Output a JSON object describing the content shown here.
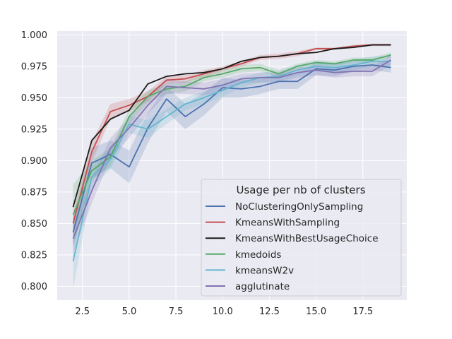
{
  "chart_data": {
    "type": "line",
    "title": "",
    "xlabel": "",
    "ylabel": "",
    "xlim": [
      1.15,
      19.85
    ],
    "ylim": [
      0.789,
      1.003
    ],
    "x_ticks": [
      2.5,
      5.0,
      7.5,
      10.0,
      12.5,
      15.0,
      17.5
    ],
    "x_tick_labels": [
      "2.5",
      "5.0",
      "7.5",
      "10.0",
      "12.5",
      "15.0",
      "17.5"
    ],
    "y_ticks": [
      0.8,
      0.825,
      0.85,
      0.875,
      0.9,
      0.925,
      0.95,
      0.975,
      1.0
    ],
    "y_tick_labels": [
      "0.800",
      "0.825",
      "0.850",
      "0.875",
      "0.900",
      "0.925",
      "0.950",
      "0.975",
      "1.000"
    ],
    "grid": true,
    "legend": {
      "title": "Usage per nb of clusters",
      "placement": "lower-right"
    },
    "x": [
      2,
      3,
      4,
      5,
      6,
      7,
      8,
      9,
      10,
      11,
      12,
      13,
      14,
      15,
      16,
      17,
      18,
      19
    ],
    "series": [
      {
        "name": "NoClusteringOnlySampling",
        "color": "#4c72b0",
        "values": [
          0.843,
          0.898,
          0.905,
          0.895,
          0.926,
          0.949,
          0.935,
          0.945,
          0.958,
          0.957,
          0.959,
          0.963,
          0.963,
          0.973,
          0.972,
          0.975,
          0.976,
          0.974
        ],
        "band": [
          0.012,
          0.012,
          0.011,
          0.013,
          0.012,
          0.01,
          0.01,
          0.009,
          0.008,
          0.007,
          0.006,
          0.006,
          0.006,
          0.005,
          0.005,
          0.004,
          0.004,
          0.004
        ]
      },
      {
        "name": "KmeansWithSampling",
        "color": "#c44e52",
        "values": [
          0.85,
          0.907,
          0.939,
          0.944,
          0.951,
          0.964,
          0.965,
          0.969,
          0.973,
          0.977,
          0.982,
          0.983,
          0.985,
          0.989,
          0.989,
          0.991,
          0.992,
          0.992
        ],
        "band": [
          0.008,
          0.008,
          0.006,
          0.005,
          0.004,
          0.003,
          0.003,
          0.003,
          0.002,
          0.002,
          0.002,
          0.002,
          0.002,
          0.001,
          0.001,
          0.001,
          0.001,
          0.001
        ]
      },
      {
        "name": "KmeansWithBestUsageChoice",
        "color": "#1a1a1a",
        "values": [
          0.863,
          0.916,
          0.933,
          0.94,
          0.961,
          0.967,
          0.969,
          0.97,
          0.973,
          0.979,
          0.982,
          0.983,
          0.985,
          0.986,
          0.989,
          0.99,
          0.992,
          0.992
        ],
        "band": [
          0.0,
          0.0,
          0.0,
          0.0,
          0.0,
          0.0,
          0.0,
          0.0,
          0.0,
          0.0,
          0.0,
          0.0,
          0.0,
          0.0,
          0.0,
          0.0,
          0.0,
          0.0
        ]
      },
      {
        "name": "kmedoids",
        "color": "#55a868",
        "values": [
          0.857,
          0.892,
          0.903,
          0.935,
          0.951,
          0.957,
          0.959,
          0.966,
          0.969,
          0.973,
          0.974,
          0.969,
          0.975,
          0.978,
          0.977,
          0.98,
          0.98,
          0.984
        ],
        "band": [
          0.024,
          0.008,
          0.007,
          0.006,
          0.005,
          0.004,
          0.004,
          0.003,
          0.003,
          0.003,
          0.003,
          0.003,
          0.002,
          0.002,
          0.002,
          0.002,
          0.002,
          0.002
        ]
      },
      {
        "name": "kmeansW2v",
        "color": "#64b5cd",
        "values": [
          0.82,
          0.887,
          0.901,
          0.929,
          0.925,
          0.935,
          0.945,
          0.95,
          0.956,
          0.962,
          0.966,
          0.967,
          0.972,
          0.975,
          0.974,
          0.976,
          0.979,
          0.979
        ],
        "band": [
          0.022,
          0.008,
          0.008,
          0.007,
          0.007,
          0.006,
          0.005,
          0.005,
          0.005,
          0.004,
          0.004,
          0.004,
          0.004,
          0.004,
          0.004,
          0.004,
          0.004,
          0.004
        ]
      },
      {
        "name": "agglutinate",
        "color": "#8172b2",
        "values": [
          0.838,
          0.876,
          0.91,
          0.926,
          0.944,
          0.959,
          0.958,
          0.957,
          0.96,
          0.965,
          0.966,
          0.966,
          0.97,
          0.972,
          0.97,
          0.971,
          0.971,
          0.98
        ],
        "band": [
          0.012,
          0.01,
          0.008,
          0.008,
          0.007,
          0.006,
          0.005,
          0.005,
          0.005,
          0.004,
          0.004,
          0.004,
          0.004,
          0.004,
          0.004,
          0.004,
          0.004,
          0.004
        ]
      }
    ]
  }
}
